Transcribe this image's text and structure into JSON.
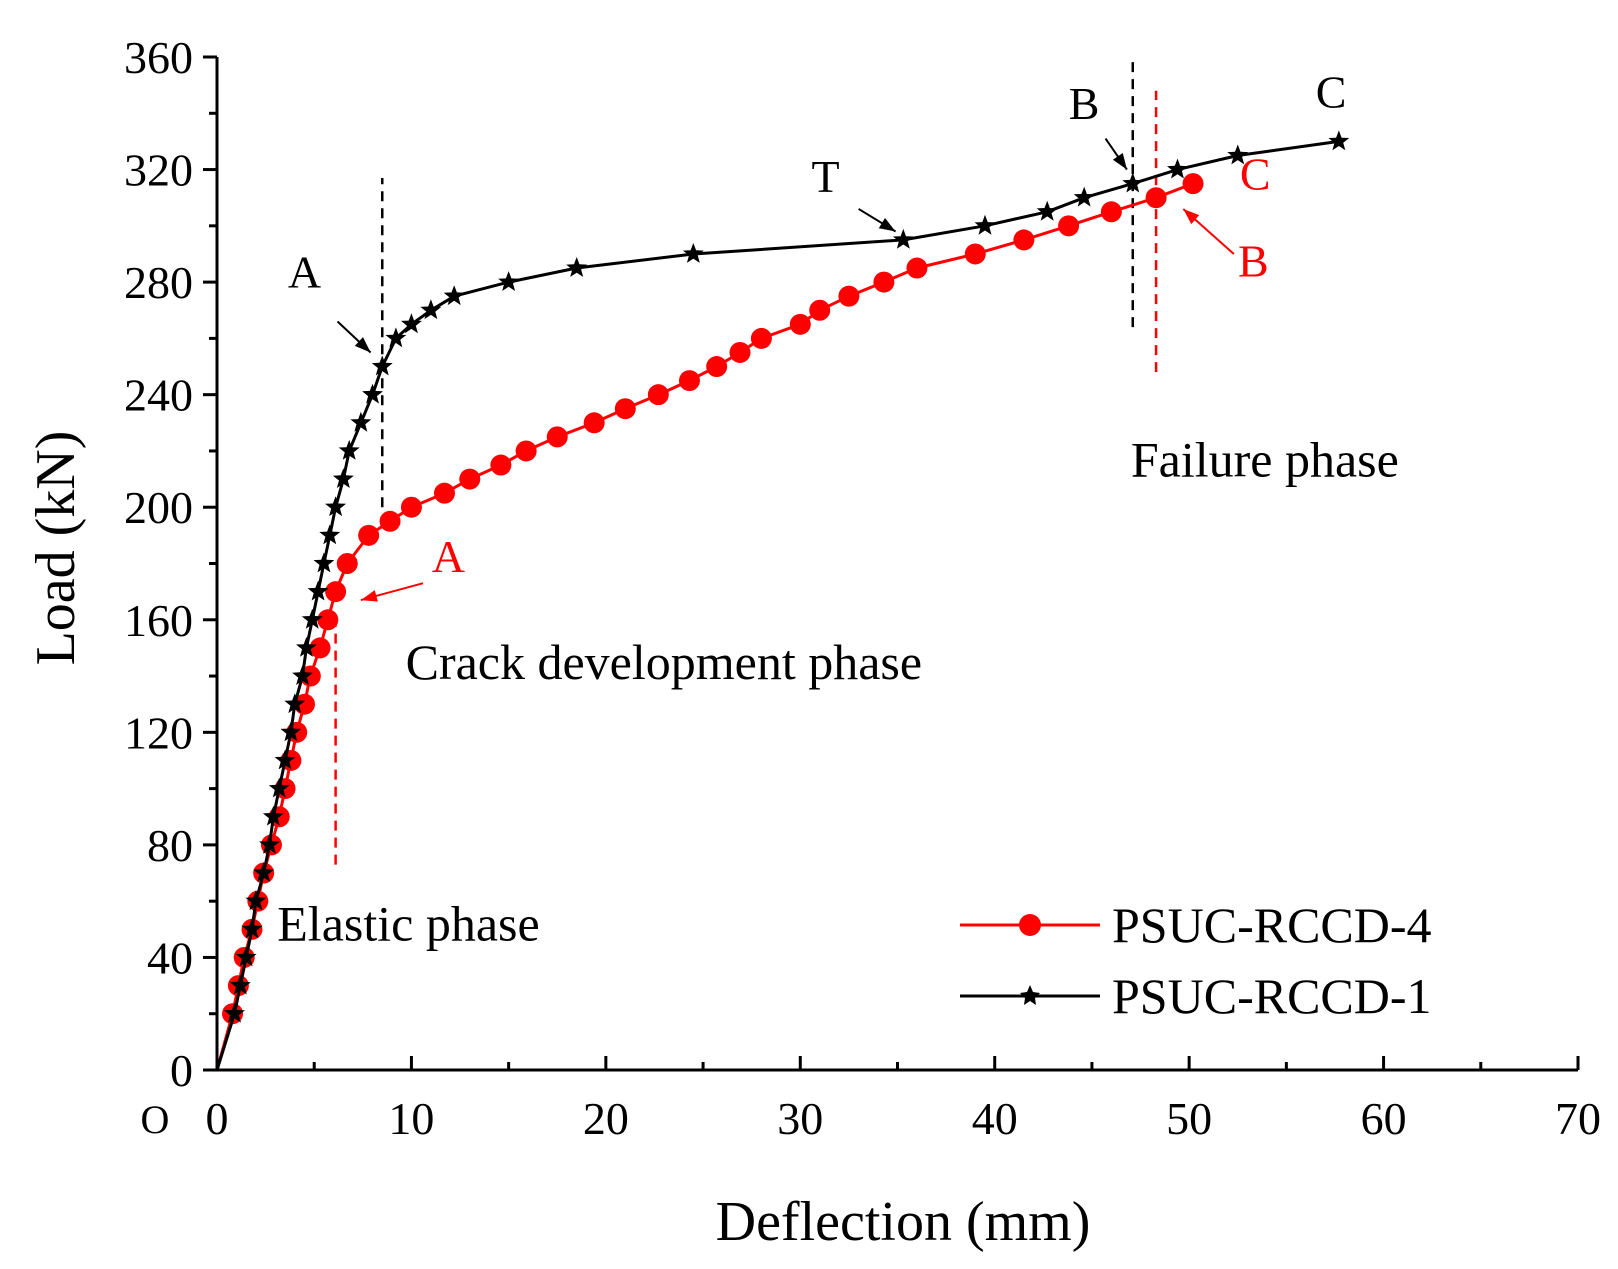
{
  "chart_data": {
    "type": "line",
    "title": "",
    "xlabel": "Deflection (mm)",
    "ylabel": "Load (kN)",
    "origin_label": "O",
    "xlim": [
      0,
      70
    ],
    "ylim": [
      0,
      360
    ],
    "xticks": [
      0,
      10,
      20,
      30,
      40,
      50,
      60,
      70
    ],
    "yticks": [
      0,
      40,
      80,
      120,
      160,
      200,
      240,
      280,
      320,
      360
    ],
    "grid": false,
    "legend_position": "bottom-right",
    "colors": {
      "axis": "#000000",
      "series1": "#ff0000",
      "series2": "#000000"
    },
    "series": [
      {
        "name": "PSUC-RCCD-4",
        "color": "#ff0000",
        "marker": "circle",
        "x": [
          0,
          0.8,
          1.1,
          1.4,
          1.8,
          2.1,
          2.4,
          2.8,
          3.2,
          3.5,
          3.8,
          4.1,
          4.5,
          4.8,
          5.3,
          5.7,
          6.1,
          6.7,
          7.8,
          8.9,
          10.0,
          11.7,
          13.0,
          14.6,
          15.9,
          17.5,
          19.4,
          21.0,
          22.7,
          24.3,
          25.7,
          26.9,
          28.0,
          30.0,
          31.0,
          32.5,
          34.3,
          36.0,
          39.0,
          41.5,
          43.8,
          46.0,
          48.3,
          50.2
        ],
        "y": [
          0,
          20,
          30,
          40,
          50,
          60,
          70,
          80,
          90,
          100,
          110,
          120,
          130,
          140,
          150,
          160,
          170,
          180,
          190,
          195,
          200,
          205,
          210,
          215,
          220,
          225,
          230,
          235,
          240,
          245,
          250,
          255,
          260,
          265,
          270,
          275,
          280,
          285,
          290,
          295,
          300,
          305,
          310,
          315
        ]
      },
      {
        "name": "PSUC-RCCD-1",
        "color": "#000000",
        "marker": "star",
        "x": [
          0,
          0.9,
          1.2,
          1.5,
          1.8,
          2.0,
          2.4,
          2.7,
          2.9,
          3.2,
          3.5,
          3.8,
          4.0,
          4.4,
          4.6,
          4.9,
          5.2,
          5.5,
          5.8,
          6.1,
          6.5,
          6.8,
          7.4,
          8.0,
          8.5,
          9.2,
          10.0,
          11.0,
          12.2,
          15.0,
          18.5,
          24.5,
          35.3,
          39.5,
          42.7,
          44.6,
          47.1,
          49.4,
          52.5,
          57.7
        ],
        "y": [
          0,
          20,
          30,
          40,
          50,
          60,
          70,
          80,
          90,
          100,
          110,
          120,
          130,
          140,
          150,
          160,
          170,
          180,
          190,
          200,
          210,
          220,
          230,
          240,
          250,
          260,
          265,
          270,
          275,
          280,
          285,
          290,
          295,
          300,
          305,
          310,
          315,
          320,
          325,
          330
        ]
      }
    ],
    "reference_lines": [
      {
        "color": "#000000",
        "x": 8.5,
        "y_from": 200,
        "y_to": 317
      },
      {
        "color": "#000000",
        "x": 47.1,
        "y_from": 264,
        "y_to": 360
      },
      {
        "color": "#ff0000",
        "x": 6.1,
        "y_from": 73,
        "y_to": 160
      },
      {
        "color": "#ff0000",
        "x": 48.3,
        "y_from": 248,
        "y_to": 348
      }
    ],
    "point_labels": [
      {
        "text": "A",
        "color": "#000000",
        "tx": 4.5,
        "ty": 278,
        "ax1": 6.2,
        "ay1": 266,
        "ax2": 7.9,
        "ay2": 255
      },
      {
        "text": "T",
        "color": "#000000",
        "tx": 31.3,
        "ty": 312,
        "ax1": 33.0,
        "ay1": 306,
        "ax2": 34.9,
        "ay2": 298
      },
      {
        "text": "B",
        "color": "#000000",
        "tx": 44.6,
        "ty": 338,
        "ax1": 45.7,
        "ay1": 331,
        "ax2": 46.8,
        "ay2": 320
      },
      {
        "text": "C",
        "color": "#000000",
        "tx": 57.3,
        "ty": 342,
        "ax1": null,
        "ay1": null,
        "ax2": null,
        "ay2": null
      },
      {
        "text": "A",
        "color": "#ff0000",
        "tx": 11.9,
        "ty": 177,
        "ax1": 10.6,
        "ay1": 173,
        "ax2": 7.4,
        "ay2": 167
      },
      {
        "text": "B",
        "color": "#ff0000",
        "tx": 53.3,
        "ty": 282,
        "ax1": 52.3,
        "ay1": 290,
        "ax2": 49.7,
        "ay2": 306
      },
      {
        "text": "C",
        "color": "#ff0000",
        "tx": 53.4,
        "ty": 313,
        "ax1": null,
        "ay1": null,
        "ax2": null,
        "ay2": null
      }
    ],
    "phase_labels": [
      {
        "text": "Elastic phase",
        "x": 3.1,
        "y": 46
      },
      {
        "text": "Crack development phase",
        "x": 9.7,
        "y": 139
      },
      {
        "text": "Failure phase",
        "x": 47.0,
        "y": 211
      }
    ]
  }
}
